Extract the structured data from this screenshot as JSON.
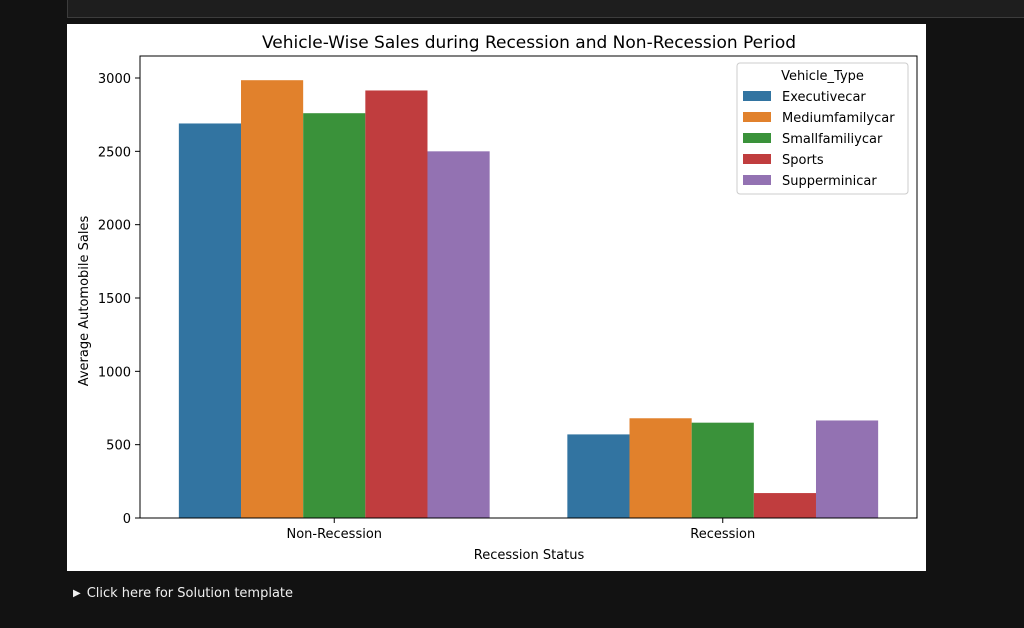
{
  "colors": {
    "page_background": "#121212",
    "figure_background": "#ffffff",
    "axis": "#000000"
  },
  "details": {
    "summary": "Click here for Solution template",
    "icon": "triangle-right-icon"
  },
  "chart_data": {
    "type": "bar",
    "title": "Vehicle-Wise Sales during Recession and Non-Recession Period",
    "xlabel": "Recession Status",
    "ylabel": "Average Automobile Sales",
    "categories": [
      "Non-Recession",
      "Recession"
    ],
    "ylim": [
      0,
      3150
    ],
    "yticks": [
      0,
      500,
      1000,
      1500,
      2000,
      2500,
      3000
    ],
    "grid": false,
    "legend": {
      "title": "Vehicle_Type",
      "position": "top-right"
    },
    "series": [
      {
        "name": "Executivecar",
        "color": "#3274a1",
        "values": [
          2690,
          570
        ]
      },
      {
        "name": "Mediumfamilycar",
        "color": "#e1812c",
        "values": [
          2985,
          680
        ]
      },
      {
        "name": "Smallfamiliycar",
        "color": "#3a923a",
        "values": [
          2760,
          650
        ]
      },
      {
        "name": "Sports",
        "color": "#c03d3e",
        "values": [
          2915,
          170
        ]
      },
      {
        "name": "Supperminicar",
        "color": "#9372b2",
        "values": [
          2500,
          665
        ]
      }
    ]
  }
}
